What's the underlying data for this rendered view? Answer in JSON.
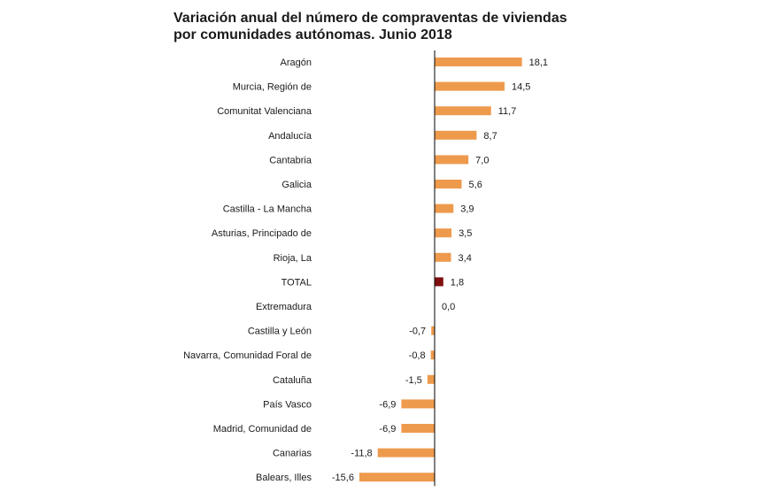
{
  "chart_data": {
    "type": "bar",
    "orientation": "horizontal",
    "title": "Variación anual del número de compraventas de viviendas por comunidades autónomas. Junio 2018",
    "categories": [
      "Aragón",
      "Murcia, Región de",
      "Comunitat Valenciana",
      "Andalucía",
      "Cantabria",
      "Galicia",
      "Castilla - La Mancha",
      "Asturias, Principado de",
      "Rioja, La",
      "TOTAL",
      "Extremadura",
      "Castilla y León",
      "Navarra, Comunidad Foral de",
      "Cataluña",
      "País Vasco",
      "Madrid, Comunidad de",
      "Canarias",
      "Balears, Illes"
    ],
    "values": [
      18.1,
      14.5,
      11.7,
      8.7,
      7.0,
      5.6,
      3.9,
      3.5,
      3.4,
      1.8,
      0.0,
      -0.7,
      -0.8,
      -1.5,
      -6.9,
      -6.9,
      -11.8,
      -15.6
    ],
    "value_labels": [
      "18,1",
      "14,5",
      "11,7",
      "8,7",
      "7,0",
      "5,6",
      "3,9",
      "3,5",
      "3,4",
      "1,8",
      "0,0",
      "-0,7",
      "-0,8",
      "-1,5",
      "-6,9",
      "-6,9",
      "-11,8",
      "-15,6"
    ],
    "highlight_category": "TOTAL",
    "colors": {
      "bar": "#ee9a4d",
      "highlight": "#7f0f0f",
      "axis": "#000000"
    },
    "grid": false,
    "legend": "none"
  }
}
